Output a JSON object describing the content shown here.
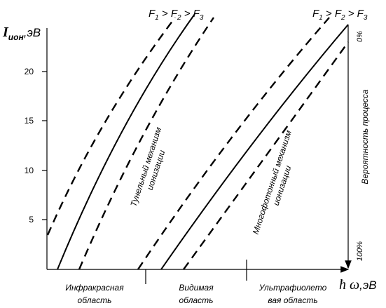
{
  "y_axis": {
    "symbol": "I",
    "subscript": "ион",
    "unit": ",эВ",
    "ticks": [
      "5",
      "10",
      "15",
      "20"
    ]
  },
  "x_axis": {
    "symbol": "ħ ω",
    "unit": ",эВ"
  },
  "field_labels": [
    [
      "F",
      "1",
      " > F",
      "2",
      " > F",
      "3"
    ],
    [
      "F",
      "1",
      " > F",
      "2",
      " > F",
      "3"
    ]
  ],
  "mechanisms": [
    [
      "Тунельный механизм",
      "ионизации"
    ],
    [
      "Многофотонный механизм",
      "ионизации"
    ]
  ],
  "probability": {
    "label": "Вероятность процесса",
    "top": "0%",
    "bottom": "100%"
  },
  "regions": [
    [
      "Инфракрасная",
      "область"
    ],
    [
      "Видимая",
      "область"
    ],
    [
      "Ультрафиолето",
      "вая область"
    ]
  ]
}
